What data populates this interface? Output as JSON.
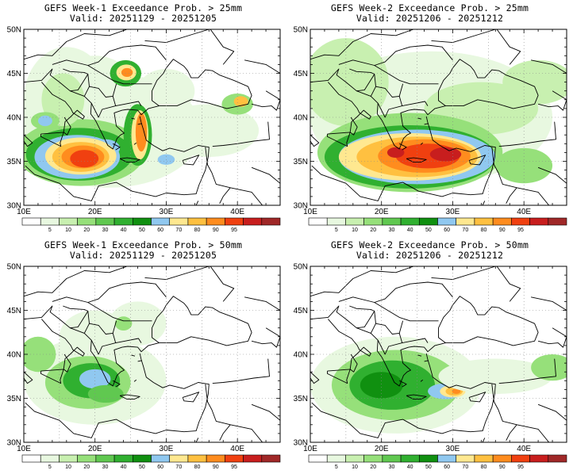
{
  "panels": [
    {
      "id": "p1",
      "title": "GEFS Week-1 Exceedance Prob. > 25mm",
      "valid": "Valid: 20251129 - 20251205"
    },
    {
      "id": "p2",
      "title": "GEFS Week-2 Exceedance Prob. > 25mm",
      "valid": "Valid: 20251206 - 20251212"
    },
    {
      "id": "p3",
      "title": "GEFS Week-1 Exceedance Prob. > 50mm",
      "valid": "Valid: 20251129 - 20251205"
    },
    {
      "id": "p4",
      "title": "GEFS Week-2 Exceedance Prob. > 50mm",
      "valid": "Valid: 20251206 - 20251212"
    }
  ],
  "lat_labels": [
    "50N",
    "45N",
    "40N",
    "35N",
    "30N"
  ],
  "lon_labels": [
    "10E",
    "20E",
    "30E",
    "40E"
  ],
  "colorbar": {
    "labels": [
      "5",
      "10",
      "20",
      "30",
      "40",
      "50",
      "60",
      "70",
      "80",
      "90",
      "95"
    ],
    "colors": [
      "#ffffff",
      "#e8f8e0",
      "#c8f0b0",
      "#96e07a",
      "#60c850",
      "#30b030",
      "#109010",
      "#90c8f0",
      "#ffe890",
      "#ffc040",
      "#ff8c1e",
      "#f04010",
      "#c81e1e",
      "#a02828"
    ]
  }
}
